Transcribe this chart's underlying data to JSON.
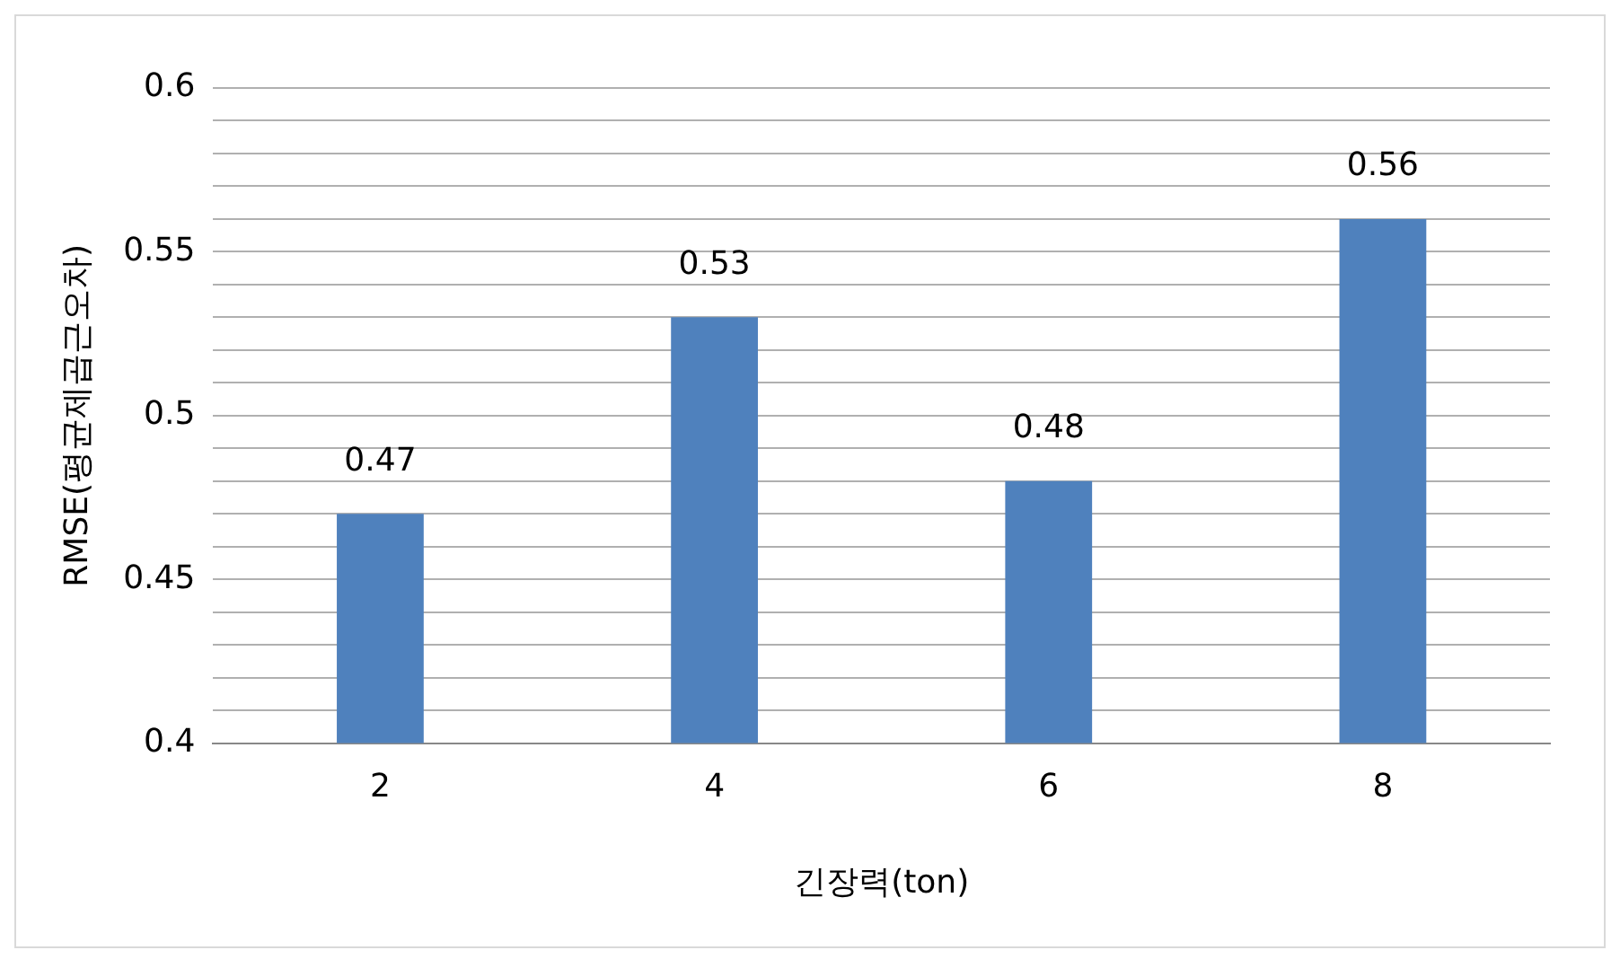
{
  "chart_data": {
    "type": "bar",
    "xlabel": "긴장력(ton)",
    "ylabel": "RMSE(평균제곱근오차)",
    "categories": [
      "2",
      "4",
      "6",
      "8"
    ],
    "values": [
      0.47,
      0.53,
      0.48,
      0.56
    ],
    "color": "#4f81bd",
    "data_labels": true,
    "ylim": [
      0.4,
      0.6
    ],
    "yticks": [
      0.4,
      {
        "value": 0.41,
        "label": null
      },
      {
        "value": 0.42,
        "label": null
      },
      {
        "value": 0.43,
        "label": null
      },
      {
        "value": 0.44,
        "label": null
      },
      0.45,
      {
        "value": 0.46,
        "label": null
      },
      {
        "value": 0.47,
        "label": null
      },
      {
        "value": 0.48,
        "label": null
      },
      {
        "value": 0.49,
        "label": null
      },
      0.5,
      {
        "value": 0.51,
        "label": null
      },
      {
        "value": 0.52,
        "label": null
      },
      {
        "value": 0.53,
        "label": null
      },
      {
        "value": 0.54,
        "label": null
      },
      0.55,
      {
        "value": 0.56,
        "label": null
      },
      {
        "value": 0.57,
        "label": null
      },
      {
        "value": 0.58,
        "label": null
      },
      {
        "value": 0.59,
        "label": null
      },
      0.6
    ],
    "grid": "y",
    "legend": false
  }
}
